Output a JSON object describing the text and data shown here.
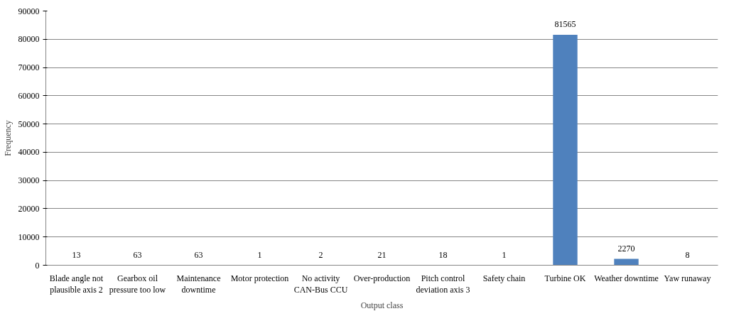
{
  "chart_data": {
    "type": "bar",
    "xlabel": "Output class",
    "ylabel": "Frequency",
    "categories": [
      "Blade angle not plausible axis 2",
      "Gearbox oil pressure too low",
      "Maintenance downtime",
      "Motor protection",
      "No activity CAN-Bus CCU",
      "Over-production",
      "Pitch control deviation axis 3",
      "Safety chain",
      "Turbine OK",
      "Weather downtime",
      "Yaw runaway"
    ],
    "values": [
      13,
      63,
      63,
      1,
      2,
      21,
      18,
      1,
      81565,
      2270,
      8
    ],
    "color": "#4f81bd",
    "ylim": [
      0,
      90000
    ],
    "yticks": [
      0,
      10000,
      20000,
      30000,
      40000,
      50000,
      60000,
      70000,
      80000,
      90000
    ],
    "grid": "y",
    "data_labels": true
  }
}
